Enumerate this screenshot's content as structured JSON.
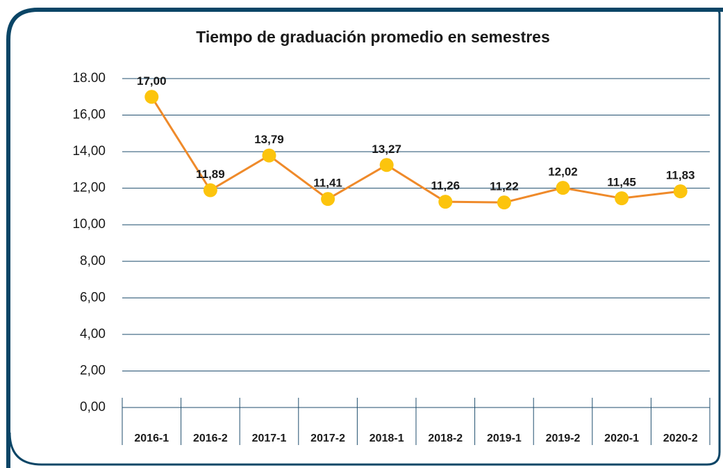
{
  "chart_data": {
    "type": "line",
    "title": "Tiempo de graduación promedio en semestres",
    "categories": [
      "2016-1",
      "2016-2",
      "2017-1",
      "2017-2",
      "2018-1",
      "2018-2",
      "2019-1",
      "2019-2",
      "2020-1",
      "2020-2"
    ],
    "values": [
      17.0,
      11.89,
      13.79,
      11.41,
      13.27,
      11.26,
      11.22,
      12.02,
      11.45,
      11.83
    ],
    "value_labels": [
      "17,00",
      "11,89",
      "13,79",
      "11,41",
      "13,27",
      "11,26",
      "11,22",
      "12,02",
      "11,45",
      "11,83"
    ],
    "color": "#ef8a2a",
    "marker_color": "#fcc40d",
    "ylim": [
      0,
      18
    ],
    "yticks": [
      {
        "value": 0,
        "label": "0,00"
      },
      {
        "value": 2,
        "label": "2,00"
      },
      {
        "value": 4,
        "label": "4,00"
      },
      {
        "value": 6,
        "label": "6,00"
      },
      {
        "value": 8,
        "label": "8,00"
      },
      {
        "value": 10,
        "label": "10,00"
      },
      {
        "value": 12,
        "label": "12,00"
      },
      {
        "value": 14,
        "label": "14,00"
      },
      {
        "value": 16,
        "label": "16,00"
      },
      {
        "value": 18,
        "label": "18.00"
      }
    ],
    "grid": true
  }
}
